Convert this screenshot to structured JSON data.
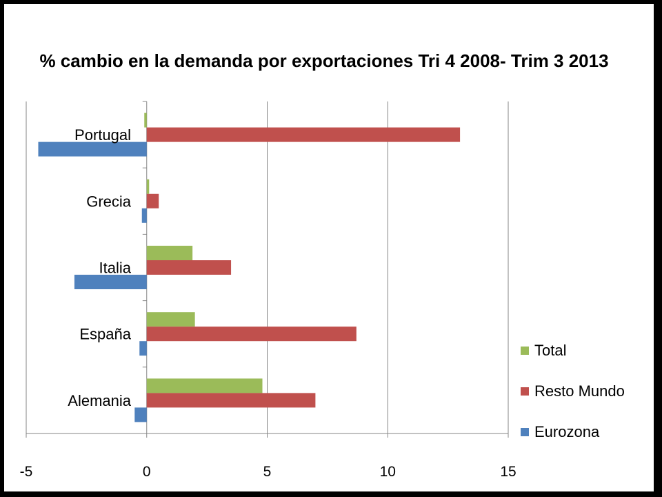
{
  "chart_data": {
    "type": "bar",
    "orientation": "horizontal",
    "title": "% cambio en la demanda por exportaciones Tri 4 2008- Trim 3 2013",
    "categories": [
      "Portugal",
      "Grecia",
      "Italia",
      "España",
      "Alemania"
    ],
    "series": [
      {
        "name": "Total",
        "color": "#9BBB59",
        "values": [
          -0.1,
          0.1,
          1.9,
          2.0,
          4.8
        ]
      },
      {
        "name": "Resto Mundo",
        "color": "#C0504D",
        "values": [
          13.0,
          0.5,
          3.5,
          8.7,
          7.0
        ]
      },
      {
        "name": "Eurozona",
        "color": "#4F81BD",
        "values": [
          -4.5,
          -0.2,
          -3.0,
          -0.3,
          -0.5
        ]
      }
    ],
    "xlim": [
      -5,
      15
    ],
    "xticks": [
      -5,
      0,
      5,
      10,
      15
    ],
    "xtick_labels": [
      "-5",
      "0",
      "5",
      "10",
      "15"
    ],
    "legend": [
      "Total",
      "Resto Mundo",
      "Eurozona"
    ],
    "legend_position": "bottom-right",
    "grid": true
  }
}
